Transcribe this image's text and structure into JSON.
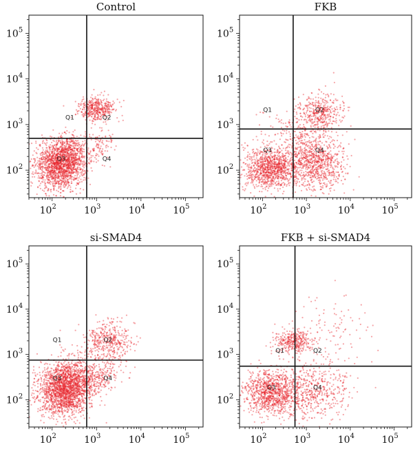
{
  "chart_data": [
    {
      "type": "scatter",
      "title": "Control",
      "x_scale": "log",
      "y_scale": "log",
      "xlim": [
        30,
        250000
      ],
      "ylim": [
        25,
        250000
      ],
      "x_ticks": [
        {
          "base": "10",
          "exp": "2",
          "value": 100
        },
        {
          "base": "10",
          "exp": "3",
          "value": 1000
        },
        {
          "base": "10",
          "exp": "4",
          "value": 10000
        },
        {
          "base": "10",
          "exp": "5",
          "value": 100000
        }
      ],
      "y_ticks": [
        {
          "base": "10",
          "exp": "2",
          "value": 100
        },
        {
          "base": "10",
          "exp": "3",
          "value": 1000
        },
        {
          "base": "10",
          "exp": "4",
          "value": 10000
        },
        {
          "base": "10",
          "exp": "5",
          "value": 100000
        }
      ],
      "gates": {
        "x": 600,
        "y": 500
      },
      "quadrant_labels": [
        {
          "text": "Q1",
          "x": 250,
          "y": 1300
        },
        {
          "text": "Q2",
          "x": 1700,
          "y": 1300
        },
        {
          "text": "Q3",
          "x": 160,
          "y": 160
        },
        {
          "text": "Q4",
          "x": 1700,
          "y": 160
        }
      ],
      "populations": [
        {
          "x": 150,
          "y": 130,
          "sx": 0.28,
          "sy": 0.28,
          "n": 1500
        },
        {
          "x": 280,
          "y": 230,
          "sx": 0.22,
          "sy": 0.2,
          "n": 350
        },
        {
          "x": 1000,
          "y": 2200,
          "sx": 0.2,
          "sy": 0.13,
          "n": 420
        },
        {
          "x": 1200,
          "y": 350,
          "sx": 0.15,
          "sy": 0.18,
          "n": 90
        }
      ],
      "color": "#e8232a"
    },
    {
      "type": "scatter",
      "title": "FKB",
      "x_scale": "log",
      "y_scale": "log",
      "xlim": [
        30,
        250000
      ],
      "ylim": [
        25,
        250000
      ],
      "x_ticks": [
        {
          "base": "10",
          "exp": "2",
          "value": 100
        },
        {
          "base": "10",
          "exp": "3",
          "value": 1000
        },
        {
          "base": "10",
          "exp": "4",
          "value": 10000
        },
        {
          "base": "10",
          "exp": "5",
          "value": 100000
        }
      ],
      "y_ticks": [
        {
          "base": "10",
          "exp": "2",
          "value": 100
        },
        {
          "base": "10",
          "exp": "3",
          "value": 1000
        },
        {
          "base": "10",
          "exp": "4",
          "value": 10000
        },
        {
          "base": "10",
          "exp": "5",
          "value": 100000
        }
      ],
      "gates": {
        "x": 500,
        "y": 800
      },
      "quadrant_labels": [
        {
          "text": "Q1",
          "x": 130,
          "y": 1900
        },
        {
          "text": "Q2",
          "x": 2000,
          "y": 1900
        },
        {
          "text": "Q3",
          "x": 130,
          "y": 250
        },
        {
          "text": "Q4",
          "x": 2000,
          "y": 250
        }
      ],
      "populations": [
        {
          "x": 150,
          "y": 110,
          "sx": 0.3,
          "sy": 0.22,
          "n": 1000
        },
        {
          "x": 1500,
          "y": 130,
          "sx": 0.35,
          "sy": 0.28,
          "n": 800
        },
        {
          "x": 2000,
          "y": 2000,
          "sx": 0.25,
          "sy": 0.2,
          "n": 380
        },
        {
          "x": 700,
          "y": 500,
          "sx": 0.45,
          "sy": 0.3,
          "n": 300
        }
      ],
      "color": "#e8232a"
    },
    {
      "type": "scatter",
      "title": "si-SMAD4",
      "x_scale": "log",
      "y_scale": "log",
      "xlim": [
        30,
        250000
      ],
      "ylim": [
        25,
        250000
      ],
      "x_ticks": [
        {
          "base": "10",
          "exp": "2",
          "value": 100
        },
        {
          "base": "10",
          "exp": "3",
          "value": 1000
        },
        {
          "base": "10",
          "exp": "4",
          "value": 10000
        },
        {
          "base": "10",
          "exp": "5",
          "value": 100000
        }
      ],
      "y_ticks": [
        {
          "base": "10",
          "exp": "2",
          "value": 100
        },
        {
          "base": "10",
          "exp": "3",
          "value": 1000
        },
        {
          "base": "10",
          "exp": "4",
          "value": 10000
        },
        {
          "base": "10",
          "exp": "5",
          "value": 100000
        }
      ],
      "gates": {
        "x": 600,
        "y": 750
      },
      "quadrant_labels": [
        {
          "text": "Q1",
          "x": 130,
          "y": 1900
        },
        {
          "text": "Q2",
          "x": 1800,
          "y": 1900
        },
        {
          "text": "Q3",
          "x": 130,
          "y": 270
        },
        {
          "text": "Q4",
          "x": 1800,
          "y": 270
        }
      ],
      "populations": [
        {
          "x": 180,
          "y": 160,
          "sx": 0.3,
          "sy": 0.3,
          "n": 1700
        },
        {
          "x": 350,
          "y": 280,
          "sx": 0.25,
          "sy": 0.25,
          "n": 450
        },
        {
          "x": 1800,
          "y": 2000,
          "sx": 0.28,
          "sy": 0.22,
          "n": 420
        },
        {
          "x": 1300,
          "y": 350,
          "sx": 0.25,
          "sy": 0.22,
          "n": 200
        }
      ],
      "color": "#e8232a"
    },
    {
      "type": "scatter",
      "title": "FKB + si-SMAD4",
      "x_scale": "log",
      "y_scale": "log",
      "xlim": [
        30,
        250000
      ],
      "ylim": [
        25,
        250000
      ],
      "x_ticks": [
        {
          "base": "10",
          "exp": "2",
          "value": 100
        },
        {
          "base": "10",
          "exp": "3",
          "value": 1000
        },
        {
          "base": "10",
          "exp": "4",
          "value": 10000
        },
        {
          "base": "10",
          "exp": "5",
          "value": 100000
        }
      ],
      "y_ticks": [
        {
          "base": "10",
          "exp": "2",
          "value": 100
        },
        {
          "base": "10",
          "exp": "3",
          "value": 1000
        },
        {
          "base": "10",
          "exp": "4",
          "value": 10000
        },
        {
          "base": "10",
          "exp": "5",
          "value": 100000
        }
      ],
      "gates": {
        "x": 550,
        "y": 550
      },
      "quadrant_labels": [
        {
          "text": "Q1",
          "x": 250,
          "y": 1100
        },
        {
          "text": "Q2",
          "x": 1800,
          "y": 1100
        },
        {
          "text": "Q3",
          "x": 160,
          "y": 170
        },
        {
          "text": "Q4",
          "x": 1800,
          "y": 170
        }
      ],
      "populations": [
        {
          "x": 160,
          "y": 150,
          "sx": 0.3,
          "sy": 0.25,
          "n": 1000
        },
        {
          "x": 500,
          "y": 1900,
          "sx": 0.2,
          "sy": 0.13,
          "n": 330
        },
        {
          "x": 1500,
          "y": 150,
          "sx": 0.4,
          "sy": 0.3,
          "n": 500
        },
        {
          "x": 3000,
          "y": 3000,
          "sx": 0.5,
          "sy": 0.4,
          "n": 120
        }
      ],
      "color": "#e8232a"
    }
  ]
}
